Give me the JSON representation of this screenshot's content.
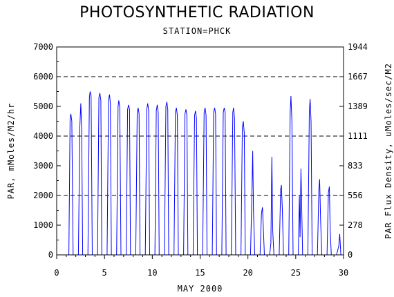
{
  "header": {
    "title": "PHOTOSYNTHETIC RADIATION",
    "subtitle": "STATION=PHCK"
  },
  "chart_data": {
    "type": "line",
    "title": "PHOTOSYNTHETIC RADIATION",
    "subtitle": "STATION=PHCK",
    "xlabel": "MAY 2000",
    "ylabel": "PAR, mMoles/M2/hr",
    "ylabel_right": "PAR Flux Density, uMoles/sec/M2",
    "xlim": [
      0,
      30
    ],
    "ylim": [
      0,
      7000
    ],
    "x_ticks": [
      0,
      5,
      10,
      15,
      20,
      25,
      30
    ],
    "y_ticks": [
      0,
      1000,
      2000,
      3000,
      4000,
      5000,
      6000,
      7000
    ],
    "y_right_ticks": [
      "0",
      "278",
      "556",
      "833",
      "1111",
      "1389",
      "1667",
      "1944"
    ],
    "gridlines_y": [
      2000,
      4000,
      6000
    ],
    "series_color": "#0000ff",
    "daily_peaks": [
      {
        "day": 1,
        "shape": [
          [
            0.27,
            0
          ],
          [
            0.4,
            4600
          ],
          [
            0.48,
            4750
          ],
          [
            0.58,
            4500
          ],
          [
            0.72,
            0
          ]
        ]
      },
      {
        "day": 2,
        "shape": [
          [
            0.27,
            0
          ],
          [
            0.42,
            4300
          ],
          [
            0.52,
            5100
          ],
          [
            0.62,
            4200
          ],
          [
            0.72,
            0
          ]
        ]
      },
      {
        "day": 3,
        "shape": [
          [
            0.27,
            0
          ],
          [
            0.42,
            5300
          ],
          [
            0.5,
            5500
          ],
          [
            0.6,
            5350
          ],
          [
            0.72,
            0
          ]
        ]
      },
      {
        "day": 4,
        "shape": [
          [
            0.27,
            0
          ],
          [
            0.42,
            5300
          ],
          [
            0.52,
            5450
          ],
          [
            0.62,
            5200
          ],
          [
            0.72,
            0
          ]
        ]
      },
      {
        "day": 5,
        "shape": [
          [
            0.27,
            0
          ],
          [
            0.42,
            5200
          ],
          [
            0.52,
            5400
          ],
          [
            0.62,
            5100
          ],
          [
            0.72,
            0
          ]
        ]
      },
      {
        "day": 6,
        "shape": [
          [
            0.27,
            0
          ],
          [
            0.42,
            5000
          ],
          [
            0.5,
            5200
          ],
          [
            0.6,
            4950
          ],
          [
            0.72,
            0
          ]
        ]
      },
      {
        "day": 7,
        "shape": [
          [
            0.27,
            0
          ],
          [
            0.42,
            4900
          ],
          [
            0.52,
            5050
          ],
          [
            0.62,
            4900
          ],
          [
            0.72,
            0
          ]
        ]
      },
      {
        "day": 8,
        "shape": [
          [
            0.27,
            0
          ],
          [
            0.42,
            4800
          ],
          [
            0.52,
            4950
          ],
          [
            0.62,
            4750
          ],
          [
            0.72,
            0
          ]
        ]
      },
      {
        "day": 9,
        "shape": [
          [
            0.27,
            0
          ],
          [
            0.42,
            4900
          ],
          [
            0.52,
            5100
          ],
          [
            0.62,
            4850
          ],
          [
            0.72,
            0
          ]
        ]
      },
      {
        "day": 10,
        "shape": [
          [
            0.27,
            0
          ],
          [
            0.42,
            4850
          ],
          [
            0.52,
            5050
          ],
          [
            0.62,
            4800
          ],
          [
            0.72,
            0
          ]
        ]
      },
      {
        "day": 11,
        "shape": [
          [
            0.27,
            0
          ],
          [
            0.42,
            5000
          ],
          [
            0.52,
            5150
          ],
          [
            0.62,
            4900
          ],
          [
            0.72,
            0
          ]
        ]
      },
      {
        "day": 12,
        "shape": [
          [
            0.27,
            0
          ],
          [
            0.42,
            4800
          ],
          [
            0.52,
            4950
          ],
          [
            0.62,
            4700
          ],
          [
            0.72,
            0
          ]
        ]
      },
      {
        "day": 13,
        "shape": [
          [
            0.27,
            0
          ],
          [
            0.42,
            4750
          ],
          [
            0.52,
            4900
          ],
          [
            0.62,
            4700
          ],
          [
            0.72,
            0
          ]
        ]
      },
      {
        "day": 14,
        "shape": [
          [
            0.27,
            0
          ],
          [
            0.42,
            4700
          ],
          [
            0.52,
            4850
          ],
          [
            0.62,
            4600
          ],
          [
            0.72,
            0
          ]
        ]
      },
      {
        "day": 15,
        "shape": [
          [
            0.27,
            0
          ],
          [
            0.42,
            4800
          ],
          [
            0.52,
            4950
          ],
          [
            0.62,
            4700
          ],
          [
            0.72,
            0
          ]
        ]
      },
      {
        "day": 16,
        "shape": [
          [
            0.27,
            0
          ],
          [
            0.42,
            4800
          ],
          [
            0.52,
            4950
          ],
          [
            0.62,
            4750
          ],
          [
            0.72,
            0
          ]
        ]
      },
      {
        "day": 17,
        "shape": [
          [
            0.27,
            0
          ],
          [
            0.42,
            4800
          ],
          [
            0.52,
            4950
          ],
          [
            0.62,
            4800
          ],
          [
            0.72,
            0
          ]
        ]
      },
      {
        "day": 18,
        "shape": [
          [
            0.27,
            0
          ],
          [
            0.42,
            4800
          ],
          [
            0.5,
            4950
          ],
          [
            0.6,
            4600
          ],
          [
            0.72,
            0
          ]
        ]
      },
      {
        "day": 19,
        "shape": [
          [
            0.27,
            0
          ],
          [
            0.42,
            4300
          ],
          [
            0.52,
            4500
          ],
          [
            0.62,
            4100
          ],
          [
            0.72,
            0
          ]
        ]
      },
      {
        "day": 20,
        "shape": [
          [
            0.27,
            0
          ],
          [
            0.4,
            1800
          ],
          [
            0.5,
            3500
          ],
          [
            0.58,
            1500
          ],
          [
            0.72,
            0
          ]
        ]
      },
      {
        "day": 21,
        "shape": [
          [
            0.27,
            0
          ],
          [
            0.42,
            1400
          ],
          [
            0.52,
            1600
          ],
          [
            0.6,
            1000
          ],
          [
            0.72,
            0
          ]
        ]
      },
      {
        "day": 22,
        "shape": [
          [
            0.27,
            0
          ],
          [
            0.4,
            400
          ],
          [
            0.5,
            3300
          ],
          [
            0.6,
            800
          ],
          [
            0.72,
            0
          ]
        ]
      },
      {
        "day": 23,
        "shape": [
          [
            0.27,
            0
          ],
          [
            0.42,
            2200
          ],
          [
            0.5,
            2350
          ],
          [
            0.6,
            1500
          ],
          [
            0.72,
            0
          ]
        ]
      },
      {
        "day": 24,
        "shape": [
          [
            0.27,
            0
          ],
          [
            0.42,
            4800
          ],
          [
            0.5,
            5350
          ],
          [
            0.6,
            4500
          ],
          [
            0.72,
            0
          ]
        ]
      },
      {
        "day": 25,
        "shape": [
          [
            0.27,
            0
          ],
          [
            0.38,
            2000
          ],
          [
            0.45,
            600
          ],
          [
            0.55,
            2900
          ],
          [
            0.65,
            1200
          ],
          [
            0.72,
            0
          ]
        ]
      },
      {
        "day": 26,
        "shape": [
          [
            0.27,
            0
          ],
          [
            0.42,
            4800
          ],
          [
            0.5,
            5250
          ],
          [
            0.6,
            4500
          ],
          [
            0.72,
            0
          ]
        ]
      },
      {
        "day": 27,
        "shape": [
          [
            0.27,
            0
          ],
          [
            0.42,
            2200
          ],
          [
            0.5,
            2550
          ],
          [
            0.6,
            1200
          ],
          [
            0.72,
            0
          ]
        ]
      },
      {
        "day": 28,
        "shape": [
          [
            0.27,
            0
          ],
          [
            0.42,
            2100
          ],
          [
            0.52,
            2300
          ],
          [
            0.6,
            900
          ],
          [
            0.72,
            0
          ]
        ]
      },
      {
        "day": 29,
        "shape": [
          [
            0.27,
            0
          ],
          [
            0.5,
            300
          ],
          [
            0.6,
            700
          ],
          [
            0.72,
            0
          ]
        ]
      }
    ]
  }
}
